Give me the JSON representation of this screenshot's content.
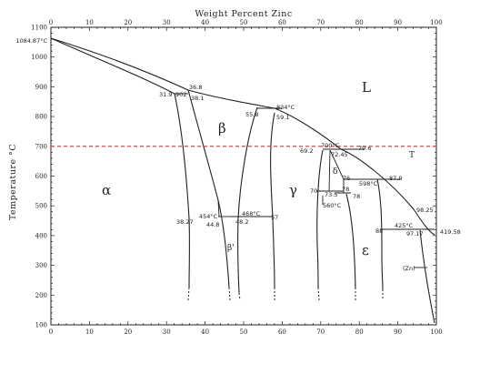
{
  "title": "Weight Percent Zinc",
  "y_axis_title": "Temperature °C",
  "x_ticks": [
    "0",
    "10",
    "20",
    "30",
    "40",
    "50",
    "60",
    "70",
    "80",
    "90",
    "100"
  ],
  "y_ticks": [
    "100",
    "200",
    "300",
    "400",
    "500",
    "600",
    "700",
    "800",
    "900",
    "1000",
    "1100"
  ],
  "melting_point_label": "1084.87°C",
  "zinc_melting_label": "419.58",
  "phases": {
    "alpha": "α",
    "beta": "β",
    "beta_prime": "β'",
    "gamma": "γ",
    "delta": "δ",
    "epsilon": "ε",
    "liquid": "L",
    "zn": "(Zn)"
  },
  "reference_line": {
    "temperature": 700,
    "marker": "T",
    "color": "#e03030"
  },
  "annotations": [
    {
      "id": "a368",
      "text": "36.8"
    },
    {
      "id": "a319",
      "text": "31.9"
    },
    {
      "id": "a902",
      "text": "902"
    },
    {
      "id": "a381",
      "text": "38.1"
    },
    {
      "id": "a558",
      "text": "55.8"
    },
    {
      "id": "a834",
      "text": "834°C"
    },
    {
      "id": "a591",
      "text": "59.1"
    },
    {
      "id": "a700",
      "text": "700°C"
    },
    {
      "id": "a796",
      "text": "79.6"
    },
    {
      "id": "a692",
      "text": "69.2"
    },
    {
      "id": "a7245",
      "text": "72.45"
    },
    {
      "id": "a76",
      "text": "76"
    },
    {
      "id": "a879",
      "text": "87.9"
    },
    {
      "id": "a598",
      "text": "598°C"
    },
    {
      "id": "a78a",
      "text": "78"
    },
    {
      "id": "a70",
      "text": "70"
    },
    {
      "id": "a735",
      "text": "73.5"
    },
    {
      "id": "a78b",
      "text": "78"
    },
    {
      "id": "a560",
      "text": "560°C"
    },
    {
      "id": "a468",
      "text": "468°C"
    },
    {
      "id": "a454",
      "text": "454°C"
    },
    {
      "id": "a327",
      "text": "38.27"
    },
    {
      "id": "a448",
      "text": "44.8"
    },
    {
      "id": "a492",
      "text": "48.2"
    },
    {
      "id": "a57",
      "text": "57"
    },
    {
      "id": "a9825",
      "text": "98.25"
    },
    {
      "id": "a425",
      "text": "425°C"
    },
    {
      "id": "a88",
      "text": "88"
    },
    {
      "id": "a9717",
      "text": "97.17"
    }
  ]
}
